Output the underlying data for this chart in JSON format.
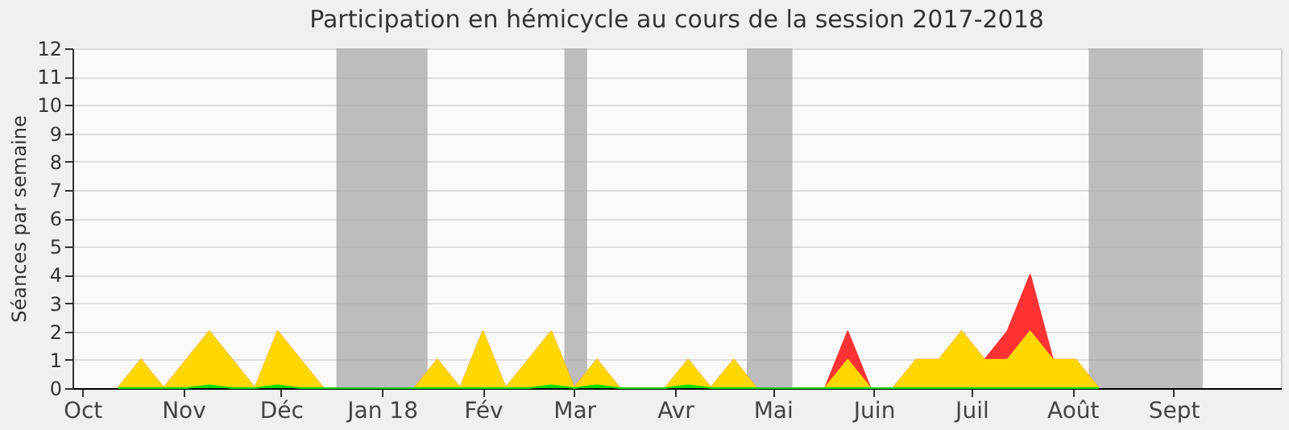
{
  "chart_data": {
    "type": "area",
    "title": "Participation en hémicycle au cours de la session 2017-2018",
    "ylabel": "Séances par semaine",
    "x": [
      "2017-10-12",
      "2017-10-19",
      "2017-10-26",
      "2017-11-02",
      "2017-11-09",
      "2017-11-16",
      "2017-11-23",
      "2017-11-30",
      "2017-12-07",
      "2017-12-14",
      "2017-12-21",
      "2017-12-28",
      "2018-01-04",
      "2018-01-11",
      "2018-01-18",
      "2018-01-25",
      "2018-02-01",
      "2018-02-08",
      "2018-02-15",
      "2018-02-22",
      "2018-03-01",
      "2018-03-08",
      "2018-03-15",
      "2018-03-22",
      "2018-03-29",
      "2018-04-05",
      "2018-04-12",
      "2018-04-19",
      "2018-04-26",
      "2018-05-03",
      "2018-05-10",
      "2018-05-17",
      "2018-05-24",
      "2018-05-31",
      "2018-06-07",
      "2018-06-14",
      "2018-06-21",
      "2018-06-28",
      "2018-07-05",
      "2018-07-12",
      "2018-07-19",
      "2018-07-26",
      "2018-08-02",
      "2018-08-09"
    ],
    "series": [
      {
        "color": "#ff3333",
        "values": [
          0,
          1,
          0,
          1,
          2,
          1,
          0,
          2,
          1,
          0,
          0,
          0,
          0,
          0,
          1,
          0,
          2,
          0,
          1,
          2,
          0,
          1,
          0,
          0,
          0,
          1,
          0,
          1,
          0,
          0,
          0,
          0,
          2,
          0,
          0,
          1,
          1,
          2,
          1,
          2,
          4,
          1,
          1,
          0
        ]
      },
      {
        "color": "#ffd700",
        "values": [
          0,
          1,
          0,
          1,
          2,
          1,
          0,
          2,
          1,
          0,
          0,
          0,
          0,
          0,
          1,
          0,
          2,
          0,
          1,
          2,
          0,
          1,
          0,
          0,
          0,
          1,
          0,
          1,
          0,
          0,
          0,
          0,
          1,
          0,
          0,
          1,
          1,
          2,
          1,
          1,
          2,
          1,
          1,
          0
        ]
      },
      {
        "color": "#00dd00",
        "values": [
          0,
          0,
          0,
          0,
          0.1,
          0,
          0,
          0.1,
          0,
          0,
          0,
          0,
          0,
          0,
          0,
          0,
          0,
          0,
          0,
          0.1,
          0,
          0.1,
          0,
          0,
          0,
          0.1,
          0,
          0,
          0,
          0,
          0,
          0,
          0,
          0,
          0,
          0,
          0,
          0,
          0,
          0,
          0,
          0,
          0,
          0
        ]
      }
    ],
    "xlim": [
      "2017-09-28",
      "2018-10-04"
    ],
    "xticks": [
      {
        "value": "2017-10-01",
        "label": "Oct"
      },
      {
        "value": "2017-11-01",
        "label": "Nov"
      },
      {
        "value": "2017-12-01",
        "label": "Déc"
      },
      {
        "value": "2018-01-01",
        "label": "Jan 18"
      },
      {
        "value": "2018-02-01",
        "label": "Fév"
      },
      {
        "value": "2018-03-01",
        "label": "Mar"
      },
      {
        "value": "2018-04-01",
        "label": "Avr"
      },
      {
        "value": "2018-05-01",
        "label": "Mai"
      },
      {
        "value": "2018-06-01",
        "label": "Juin"
      },
      {
        "value": "2018-07-01",
        "label": "Juil"
      },
      {
        "value": "2018-08-01",
        "label": "Août"
      },
      {
        "value": "2018-09-01",
        "label": "Sept"
      }
    ],
    "ylim": [
      0,
      12
    ],
    "yticks": [
      0,
      1,
      2,
      3,
      4,
      5,
      6,
      7,
      8,
      9,
      10,
      11,
      12
    ],
    "bands": [
      {
        "axis": "x",
        "from": "2017-12-18",
        "to": "2018-01-15",
        "color": "#a8a8a8"
      },
      {
        "axis": "x",
        "from": "2018-02-26",
        "to": "2018-03-05",
        "color": "#a8a8a8"
      },
      {
        "axis": "x",
        "from": "2018-04-23",
        "to": "2018-05-07",
        "color": "#a8a8a8"
      },
      {
        "axis": "x",
        "from": "2018-08-06",
        "to": "2018-09-10",
        "color": "#a8a8a8"
      }
    ],
    "grid": "y"
  }
}
